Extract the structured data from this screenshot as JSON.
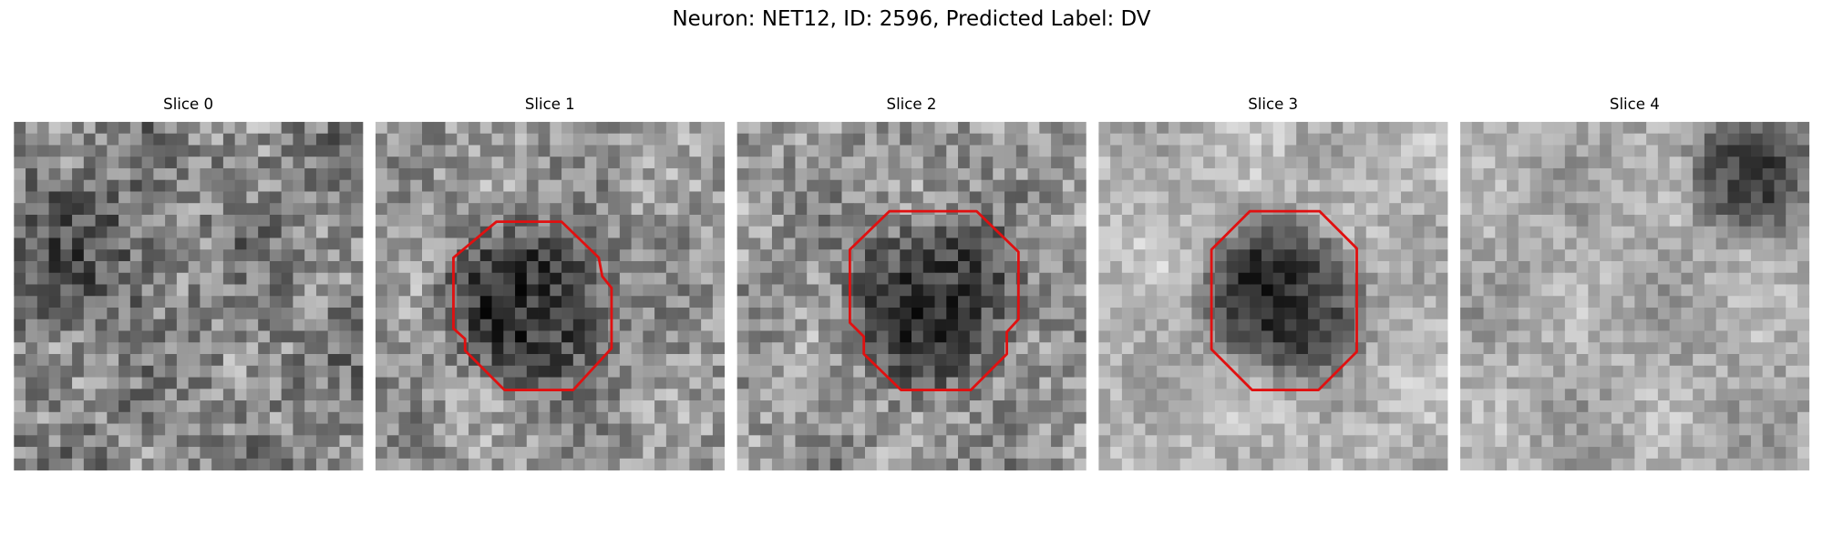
{
  "title": "Neuron: NET12, ID: 2596, Predicted Label: DV",
  "panels": [
    {
      "title": "Slice 0"
    },
    {
      "title": "Slice 1"
    },
    {
      "title": "Slice 2"
    },
    {
      "title": "Slice 3"
    },
    {
      "title": "Slice 4"
    }
  ]
}
